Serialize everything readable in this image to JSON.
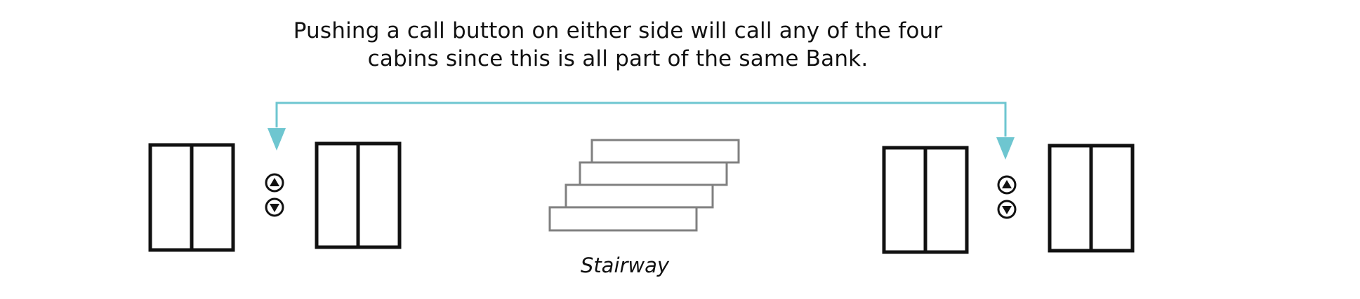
{
  "caption": {
    "line1": "Pushing a call button on either side will call any of the four",
    "line2": "cabins since this is all part of the same Bank."
  },
  "stairway_label": "Stairway",
  "colors": {
    "connector": "#6ec6d0",
    "elevator_stroke": "#111111",
    "stair_stroke": "#808080",
    "text": "#111111"
  },
  "icons": {
    "call_up": "up-arrow-in-circle",
    "call_down": "down-arrow-in-circle"
  }
}
